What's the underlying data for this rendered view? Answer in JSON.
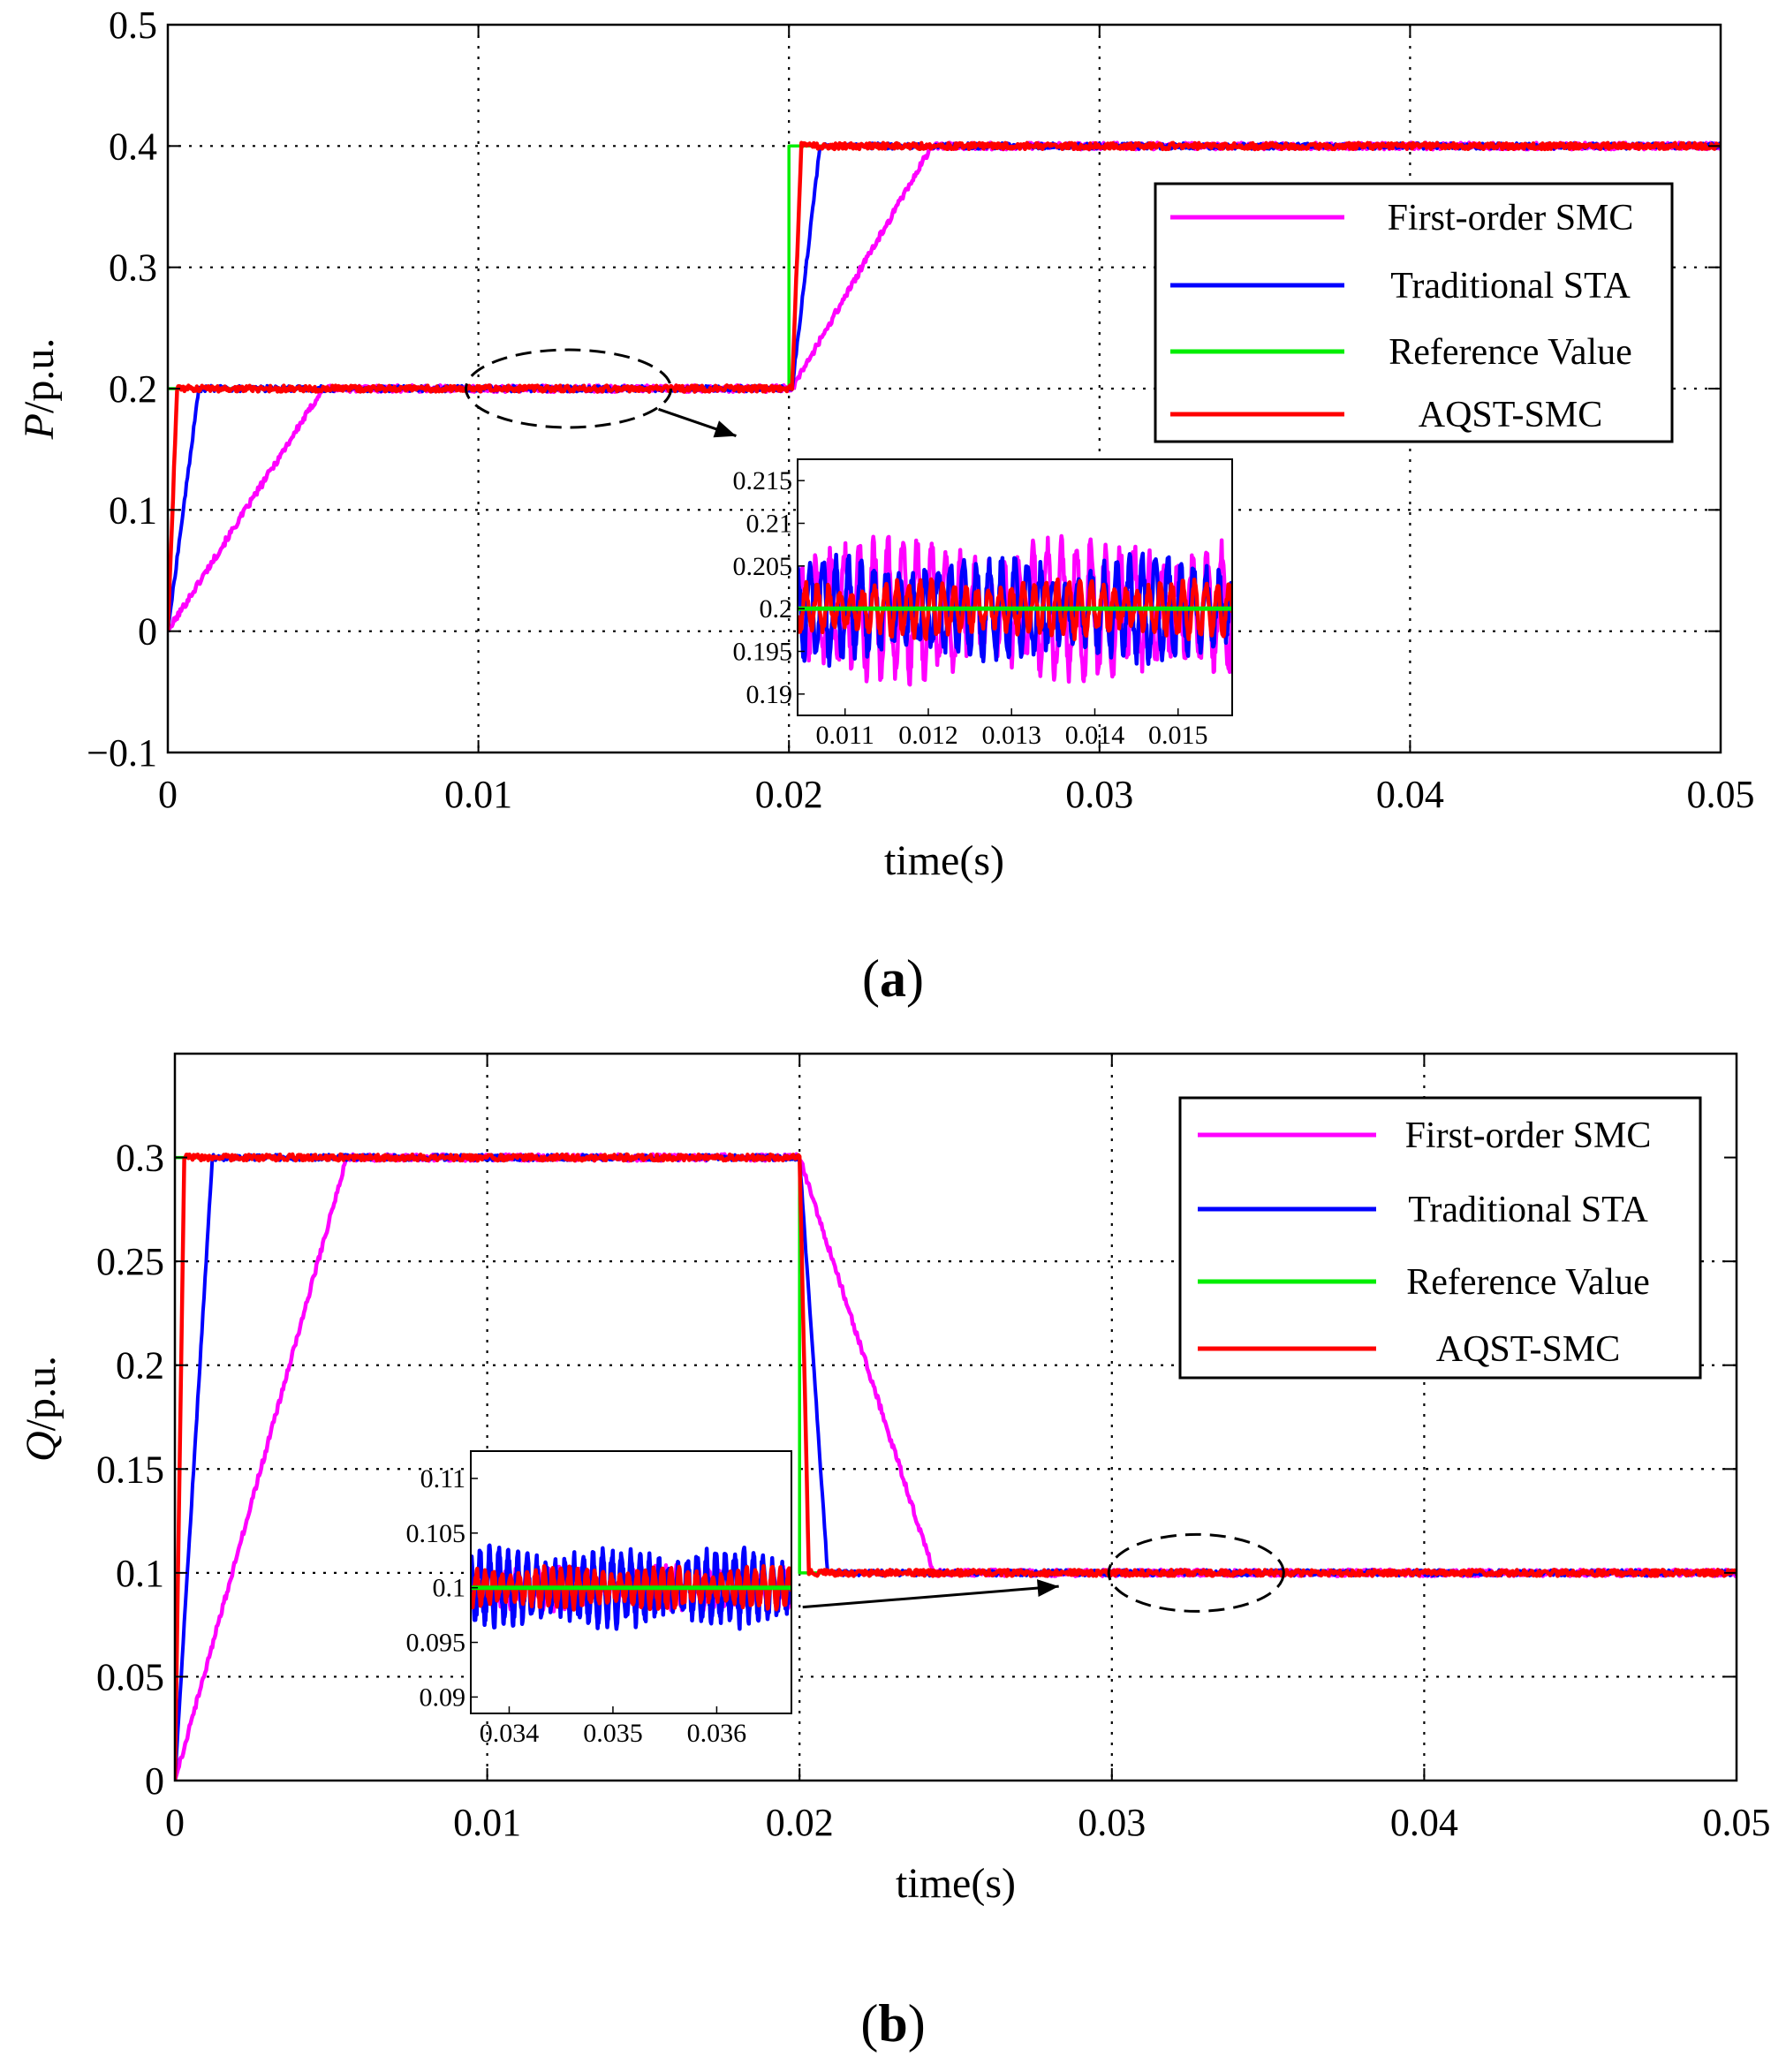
{
  "figure": {
    "panels": [
      {
        "label_open": "(",
        "label_letter": "a",
        "label_close": ")"
      },
      {
        "label_open": "(",
        "label_letter": "b",
        "label_close": ")"
      }
    ]
  },
  "colors": {
    "first_order_smc": "#ff00ff",
    "traditional_sta": "#0000ff",
    "reference": "#00ee00",
    "aqst_smc": "#ff0000",
    "grid": "#000000"
  },
  "chart_data": [
    {
      "type": "line",
      "ylabel_var": "P",
      "ylabel_unit": "/p.u.",
      "xlabel": "time(s)",
      "xlim": [
        0,
        0.05
      ],
      "ylim": [
        -0.1,
        0.5
      ],
      "xticks": [
        0,
        0.01,
        0.02,
        0.03,
        0.04,
        0.05
      ],
      "xtick_labels": [
        "0",
        "0.01",
        "0.02",
        "0.03",
        "0.04",
        "0.05"
      ],
      "yticks": [
        -0.1,
        0,
        0.1,
        0.2,
        0.3,
        0.4,
        0.5
      ],
      "ytick_labels": [
        "−0.1",
        "0",
        "0.1",
        "0.2",
        "0.3",
        "0.4",
        "0.5"
      ],
      "grid": true,
      "legend_position": "top-right",
      "legend": [
        "First-order SMC",
        "Traditional STA",
        "Reference Value",
        "AQST-SMC"
      ],
      "series": [
        {
          "name": "First-order SMC",
          "color_key": "first_order_smc",
          "x": [
            0,
            0.005,
            0.02,
            0.0201,
            0.0246,
            0.05
          ],
          "y": [
            0,
            0.2,
            0.2,
            0.2,
            0.4,
            0.4
          ]
        },
        {
          "name": "Traditional STA",
          "color_key": "traditional_sta",
          "x": [
            0,
            0.001,
            0.02,
            0.0201,
            0.021,
            0.05
          ],
          "y": [
            0,
            0.2,
            0.2,
            0.2,
            0.4,
            0.4
          ]
        },
        {
          "name": "Reference Value",
          "color_key": "reference",
          "x": [
            0,
            0.02,
            0.02,
            0.05
          ],
          "y": [
            0.2,
            0.2,
            0.4,
            0.4
          ]
        },
        {
          "name": "AQST-SMC",
          "color_key": "aqst_smc",
          "x": [
            0,
            0.0003,
            0.02,
            0.0201,
            0.0204,
            0.05
          ],
          "y": [
            0,
            0.2,
            0.2,
            0.2,
            0.4,
            0.4
          ]
        }
      ],
      "zoom_ellipse": {
        "x": 0.0129,
        "y": 0.2,
        "rx": 0.0033,
        "ry": 0.032
      },
      "arrow": {
        "from": [
          0.0158,
          0.183
        ],
        "to": [
          0.0183,
          0.161
        ]
      },
      "inset": {
        "xlim": [
          0.01043,
          0.01565
        ],
        "ylim": [
          0.1875,
          0.2175
        ],
        "xticks": [
          0.011,
          0.012,
          0.013,
          0.014,
          0.015
        ],
        "xtick_labels": [
          "0.011",
          "0.012",
          "0.013",
          "0.014",
          "0.015"
        ],
        "yticks": [
          0.19,
          0.195,
          0.2,
          0.205,
          0.21,
          0.215
        ],
        "ytick_labels": [
          "0.19",
          "0.195",
          "0.2",
          "0.205",
          "0.21",
          "0.215"
        ],
        "reference": 0.2,
        "amplitudes": {
          "first_order_smc": 0.0075,
          "traditional_sta": 0.0055,
          "aqst_smc": 0.003
        }
      }
    },
    {
      "type": "line",
      "ylabel_var": "Q",
      "ylabel_unit": "/p.u.",
      "xlabel": "time(s)",
      "xlim": [
        0,
        0.05
      ],
      "ylim": [
        0,
        0.35
      ],
      "xticks": [
        0,
        0.01,
        0.02,
        0.03,
        0.04,
        0.05
      ],
      "xtick_labels": [
        "0",
        "0.01",
        "0.02",
        "0.03",
        "0.04",
        "0.05"
      ],
      "yticks": [
        0,
        0.05,
        0.1,
        0.15,
        0.2,
        0.25,
        0.3
      ],
      "ytick_labels": [
        "0",
        "0.05",
        "0.1",
        "0.15",
        "0.2",
        "0.25",
        "0.3"
      ],
      "grid": true,
      "legend_position": "top-right",
      "legend": [
        "First-order SMC",
        "Traditional STA",
        "Reference Value",
        "AQST-SMC"
      ],
      "series": [
        {
          "name": "First-order SMC",
          "color_key": "first_order_smc",
          "x": [
            0,
            0.0055,
            0.02,
            0.0243,
            0.05
          ],
          "y": [
            0,
            0.3,
            0.3,
            0.1,
            0.1
          ]
        },
        {
          "name": "Traditional STA",
          "color_key": "traditional_sta",
          "x": [
            0,
            0.0012,
            0.02,
            0.0209,
            0.05
          ],
          "y": [
            0,
            0.3,
            0.3,
            0.1,
            0.1
          ]
        },
        {
          "name": "Reference Value",
          "color_key": "reference",
          "x": [
            0,
            0.02,
            0.02,
            0.05
          ],
          "y": [
            0.3,
            0.3,
            0.1,
            0.1
          ]
        },
        {
          "name": "AQST-SMC",
          "color_key": "aqst_smc",
          "x": [
            0,
            0.0003,
            0.02,
            0.0203,
            0.05
          ],
          "y": [
            0,
            0.3,
            0.3,
            0.1,
            0.1
          ]
        }
      ],
      "zoom_ellipse": {
        "x": 0.0327,
        "y": 0.1,
        "rx": 0.0028,
        "ry": 0.0185
      },
      "arrow": {
        "from": [
          0.0201,
          0.0835
        ],
        "to": [
          0.0283,
          0.0935
        ]
      },
      "inset": {
        "xlim": [
          0.03363,
          0.03672
        ],
        "ylim": [
          0.0885,
          0.1125
        ],
        "xticks": [
          0.034,
          0.035,
          0.036
        ],
        "xtick_labels": [
          "0.034",
          "0.035",
          "0.036"
        ],
        "yticks": [
          0.09,
          0.095,
          0.1,
          0.105,
          0.11
        ],
        "ytick_labels": [
          "0.09",
          "0.095",
          "0.1",
          "0.105",
          "0.11"
        ],
        "reference": 0.1,
        "amplitudes": {
          "first_order_smc": 0.0018,
          "traditional_sta": 0.0032,
          "aqst_smc": 0.0017
        }
      }
    }
  ]
}
